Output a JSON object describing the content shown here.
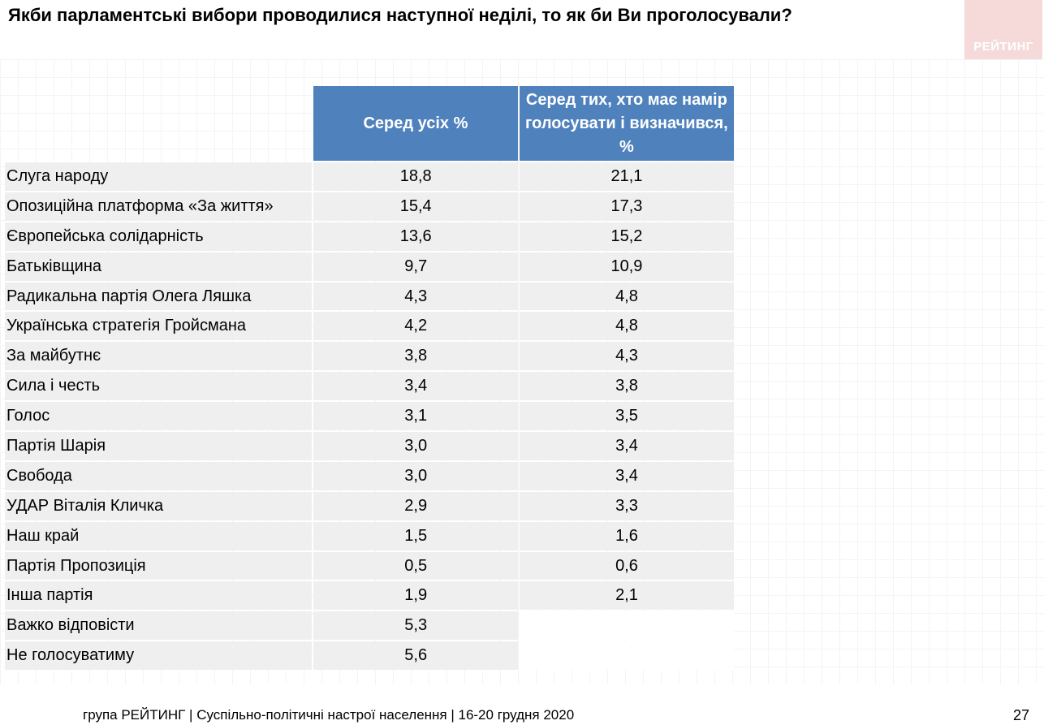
{
  "title": "Якби парламентські вибори проводилися наступної неділі, то як би Ви проголосували?",
  "logo_text": "РЕЙТИНГ",
  "table": {
    "col1_header": "Серед усіх %",
    "col2_header": "Серед тих, хто має намір голосувати і визначився, %",
    "rows": [
      {
        "name": "Слуга народу",
        "all": "18,8",
        "decided": "21,1"
      },
      {
        "name": "Опозиційна платформа «За життя»",
        "all": "15,4",
        "decided": "17,3"
      },
      {
        "name": "Європейська солідарність",
        "all": "13,6",
        "decided": "15,2"
      },
      {
        "name": "Батьківщина",
        "all": "9,7",
        "decided": "10,9"
      },
      {
        "name": "Радикальна партія Олега Ляшка",
        "all": "4,3",
        "decided": "4,8"
      },
      {
        "name": "Українська стратегія Гройсмана",
        "all": "4,2",
        "decided": "4,8"
      },
      {
        "name": "За майбутнє",
        "all": "3,8",
        "decided": "4,3"
      },
      {
        "name": "Сила і честь",
        "all": "3,4",
        "decided": "3,8"
      },
      {
        "name": "Голос",
        "all": "3,1",
        "decided": "3,5"
      },
      {
        "name": "Партія Шарія",
        "all": "3,0",
        "decided": "3,4"
      },
      {
        "name": "Свобода",
        "all": "3,0",
        "decided": "3,4"
      },
      {
        "name": "УДАР Віталія Кличка",
        "all": "2,9",
        "decided": "3,3"
      },
      {
        "name": "Наш край",
        "all": "1,5",
        "decided": "1,6"
      },
      {
        "name": "Партія Пропозиція",
        "all": "0,5",
        "decided": "0,6"
      },
      {
        "name": "Інша партія",
        "all": "1,9",
        "decided": "2,1"
      },
      {
        "name": "Важко відповісти",
        "all": "5,3",
        "decided": ""
      },
      {
        "name": "Не голосуватиму",
        "all": "5,6",
        "decided": ""
      }
    ]
  },
  "footer": "група РЕЙТИНГ | Суспільно-політичні настрої населення | 16-20 грудня 2020",
  "page_number": "27"
}
